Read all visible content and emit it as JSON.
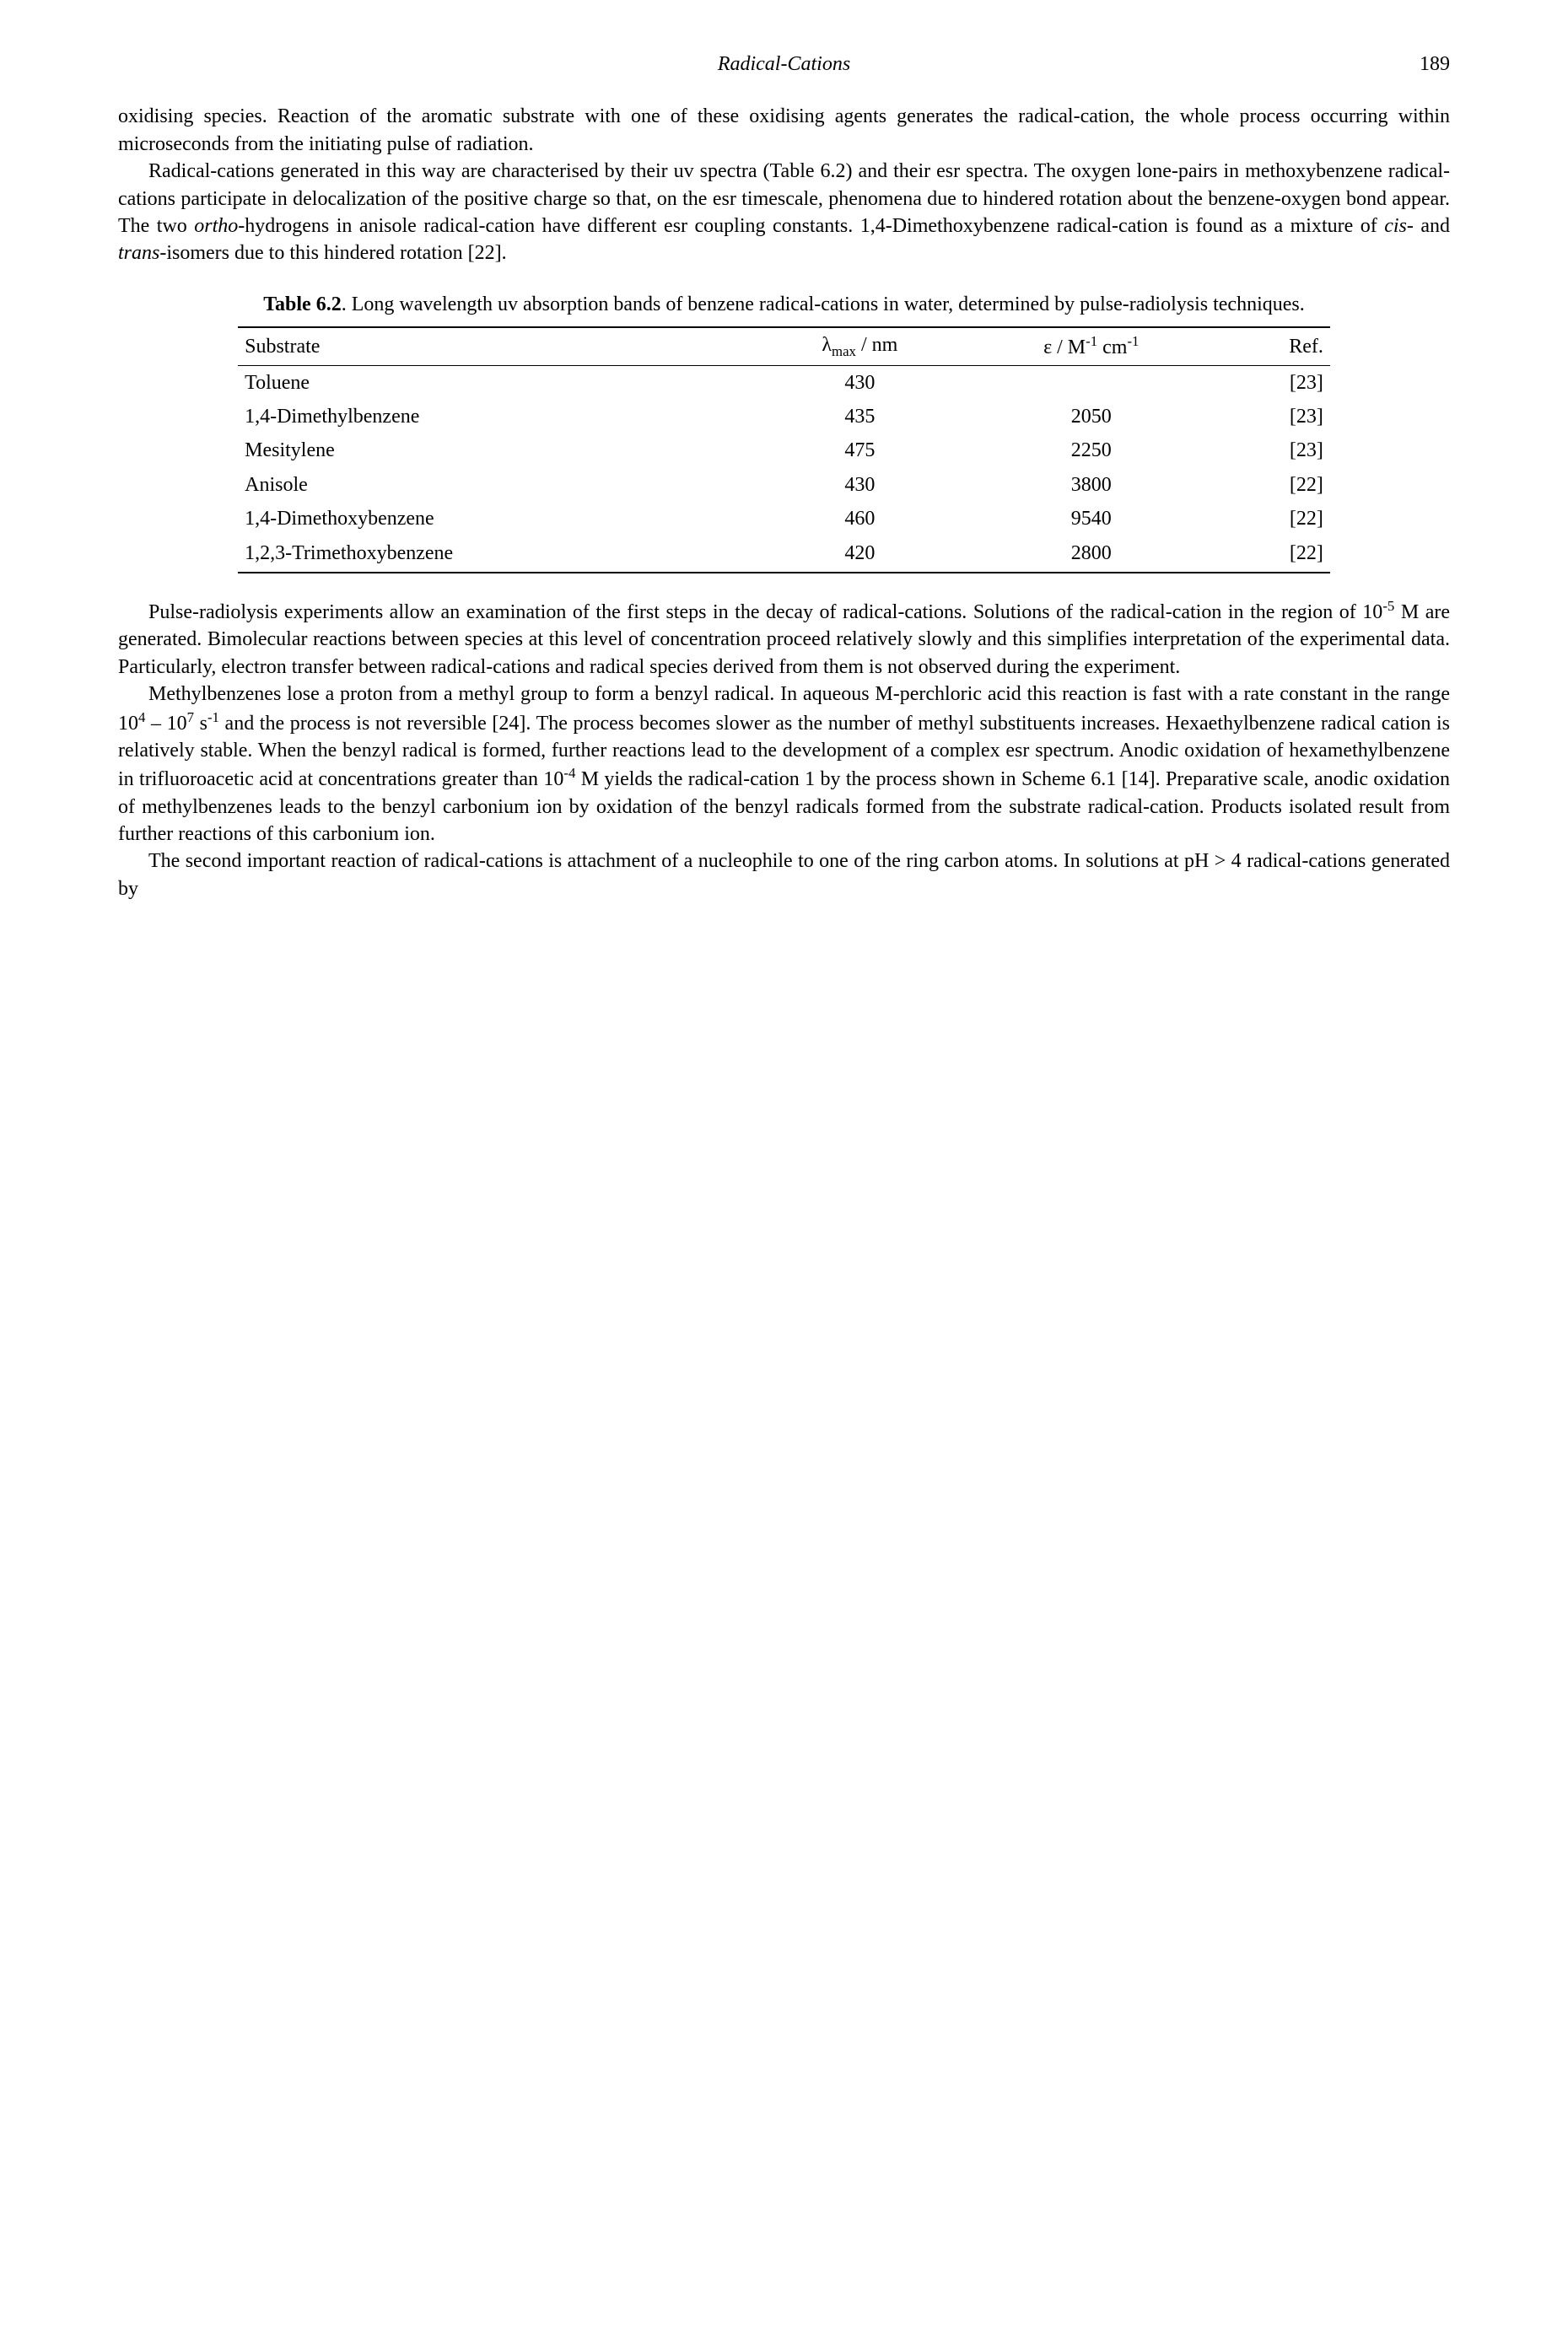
{
  "header": {
    "running_title": "Radical-Cations",
    "page_number": "189"
  },
  "paragraphs": {
    "p1": "oxidising species. Reaction of the aromatic substrate with one of these oxidising agents generates the radical-cation, the whole process occurring within microseconds from the initiating pulse of radiation.",
    "p2a": "Radical-cations generated in this way are characterised by their uv spectra (Table 6.2) and their esr spectra. The oxygen lone-pairs in methoxybenzene radical-cations participate in delocalization of the positive charge so that, on the esr timescale, phenomena due to hindered rotation about the benzene-oxygen bond appear. The two ",
    "p2_ortho": "ortho",
    "p2b": "-hydrogens in anisole radical-cation have different esr coupling constants. 1,4-Dimethoxybenzene radical-cation is found as a mixture of ",
    "p2_cis": "cis",
    "p2c": "- and ",
    "p2_trans": "trans",
    "p2d": "-isomers due to this hindered rotation [22].",
    "p3a": "Pulse-radiolysis experiments allow an examination of the first steps in the decay of radical-cations. Solutions of the radical-cation in the region of 10",
    "p3_exp1": "-5",
    "p3b": " M are generated. Bimolecular reactions between species at this level of concentration proceed relatively slowly and this simplifies interpretation of the experimental data. Particularly, electron transfer between radical-cations and radical species derived from them is not observed during the experiment.",
    "p4a": "Methylbenzenes lose a proton from a methyl group to form a benzyl radical. In aqueous M-perchloric acid this reaction is fast with a rate constant in the range 10",
    "p4_exp1": "4",
    "p4b": " – 10",
    "p4_exp2": "7",
    "p4c": " s",
    "p4_exp3": "-1",
    "p4d": " and the process is not reversible [24]. The process becomes slower as the number of methyl substituents increases. Hexaethylbenzene radical cation is relatively stable. When the benzyl radical is formed, further reactions lead to the development of a complex esr spectrum. Anodic oxidation of hexamethylbenzene in trifluoroacetic acid at concentrations greater than 10",
    "p4_exp4": "-4",
    "p4e": " M yields the radical-cation 1 by the process shown in Scheme 6.1 [14]. Preparative scale, anodic oxidation of methylbenzenes leads to the benzyl carbonium ion by oxidation of the benzyl radicals formed from the substrate radical-cation. Products isolated result from further reactions of this carbonium ion.",
    "p5": "The second important reaction of radical-cations is attachment of a nucleophile to one of the ring carbon atoms. In solutions at pH > 4 radical-cations generated by"
  },
  "table": {
    "caption_label": "Table 6.2",
    "caption_text": ". Long wavelength uv absorption bands of benzene radical-cations in water, determined by pulse-radiolysis techniques.",
    "headers": {
      "substrate": "Substrate",
      "lambda_pre": "λ",
      "lambda_sub": "max",
      "lambda_post": " / nm",
      "eps_pre": "ε / M",
      "eps_sup1": "-1",
      "eps_mid": " cm",
      "eps_sup2": "-1",
      "ref": "Ref."
    },
    "rows": [
      {
        "substrate": "Toluene",
        "lambda": "430",
        "eps": "",
        "ref": "[23]"
      },
      {
        "substrate": "1,4-Dimethylbenzene",
        "lambda": "435",
        "eps": "2050",
        "ref": "[23]"
      },
      {
        "substrate": "Mesitylene",
        "lambda": "475",
        "eps": "2250",
        "ref": "[23]"
      },
      {
        "substrate": "Anisole",
        "lambda": "430",
        "eps": "3800",
        "ref": "[22]"
      },
      {
        "substrate": "1,4-Dimethoxybenzene",
        "lambda": "460",
        "eps": "9540",
        "ref": "[22]"
      },
      {
        "substrate": "1,2,3-Trimethoxybenzene",
        "lambda": "420",
        "eps": "2800",
        "ref": "[22]"
      }
    ]
  }
}
